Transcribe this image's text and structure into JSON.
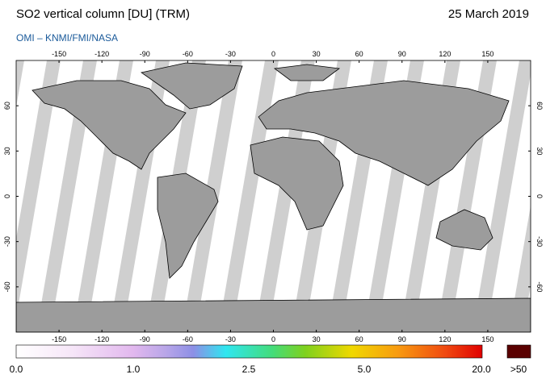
{
  "header": {
    "title": "SO2 vertical column [DU] (TRM)",
    "date": "25 March 2019",
    "source": "OMI  –  KNMI/FMI/NASA"
  },
  "map": {
    "longitude_ticks": [
      -150,
      -120,
      -90,
      -60,
      -30,
      0,
      30,
      60,
      90,
      120,
      150
    ],
    "latitude_ticks": [
      60,
      30,
      0,
      -30,
      -60
    ]
  },
  "colorbar": {
    "labels": [
      "0.0",
      "1.0",
      "2.5",
      "5.0",
      "20.0"
    ],
    "overflow_label": ">50"
  }
}
